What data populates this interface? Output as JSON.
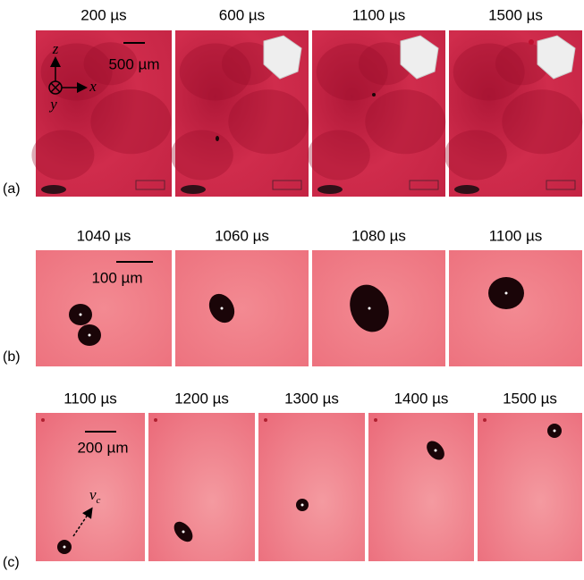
{
  "rows": [
    {
      "label": "(a)",
      "frames": [
        "200 µs",
        "600 µs",
        "1100 µs",
        "1500 µs"
      ],
      "scale_bar": "500 µm",
      "axes": [
        "z",
        "x",
        "y"
      ]
    },
    {
      "label": "(b)",
      "frames": [
        "1040 µs",
        "1060 µs",
        "1080 µs",
        "1100 µs"
      ],
      "scale_bar": "100 µm"
    },
    {
      "label": "(c)",
      "frames": [
        "1100 µs",
        "1200 µs",
        "1300 µs",
        "1400 µs",
        "1500 µs"
      ],
      "scale_bar": "200 µm",
      "velocity": {
        "symbol": "v",
        "subscript": "c"
      }
    }
  ]
}
